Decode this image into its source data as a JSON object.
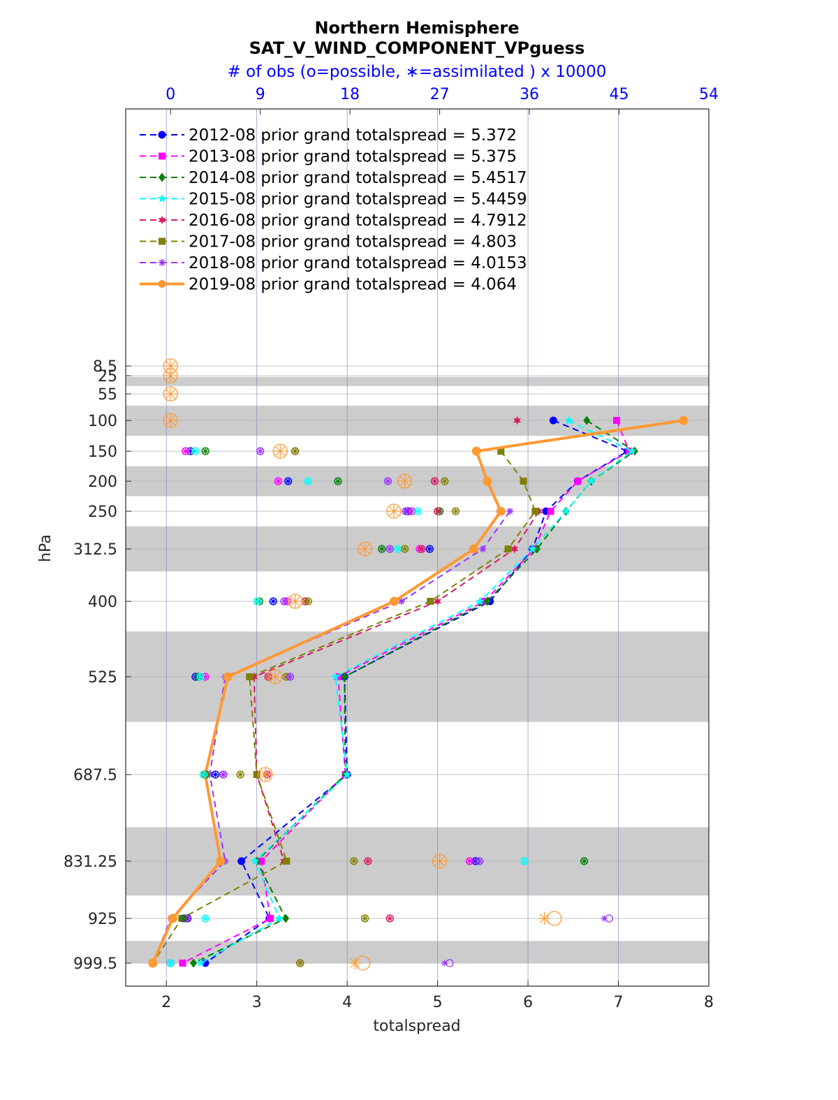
{
  "chart_data": {
    "type": "line",
    "title": "Northern Hemisphere",
    "subtitle": "SAT_V_WIND_COMPONENT_VPguess",
    "top_axis_label": "# of obs (o=possible, ∗=assimilated ) x 10000",
    "xlabel": "totalspread",
    "ylabel": "hPa",
    "xlim": [
      1.55,
      8
    ],
    "x_ticks": [
      "2",
      "3",
      "4",
      "5",
      "6",
      "7",
      "8"
    ],
    "top_xlim": [
      -4.5,
      54
    ],
    "top_ticks": [
      "0",
      "9",
      "18",
      "27",
      "36",
      "45",
      "54"
    ],
    "levels": [
      8.5,
      25,
      55,
      100,
      150,
      200,
      250,
      312.5,
      400,
      525,
      687.5,
      831.25,
      925,
      999.5
    ],
    "level_labels": [
      "8.5",
      "25",
      "55",
      "100",
      "150",
      "200",
      "250",
      "312.5",
      "400",
      "525",
      "687.5",
      "831.25",
      "925",
      "999.5"
    ],
    "grid": "on",
    "legend_position": "top-left",
    "series": [
      {
        "name": "2012-08 prior grand totalspread = 5.372",
        "color": "#0000ff",
        "marker": "circle",
        "style": "dashed",
        "values": [
          null,
          null,
          null,
          6.28,
          7.1,
          6.55,
          6.2,
          6.05,
          5.58,
          3.97,
          4.0,
          2.83,
          3.14,
          2.43
        ]
      },
      {
        "name": "2013-08 prior grand totalspread = 5.375",
        "color": "#ff00ff",
        "marker": "square",
        "style": "dashed",
        "values": [
          null,
          null,
          null,
          6.98,
          7.12,
          6.55,
          6.25,
          6.07,
          5.52,
          3.9,
          3.98,
          3.05,
          3.15,
          2.18
        ]
      },
      {
        "name": "2014-08 prior grand totalspread = 5.4517",
        "color": "#008000",
        "marker": "diamond",
        "style": "dashed",
        "values": [
          null,
          null,
          null,
          6.65,
          7.18,
          6.7,
          6.42,
          6.1,
          5.55,
          3.97,
          3.98,
          3.0,
          3.32,
          2.3
        ]
      },
      {
        "name": "2015-08 prior grand totalspread = 5.4459",
        "color": "#00ffff",
        "marker": "star",
        "style": "dashed",
        "values": [
          null,
          null,
          null,
          6.45,
          7.15,
          6.7,
          6.42,
          6.05,
          5.47,
          3.87,
          4.0,
          2.98,
          3.25,
          2.38
        ]
      },
      {
        "name": "2016-08 prior grand totalspread = 4.7912",
        "color": "#d81b60",
        "marker": "hexagram",
        "style": "dashed",
        "values": [
          null,
          null,
          null,
          5.88,
          null,
          null,
          6.12,
          5.85,
          5.0,
          2.97,
          3.0,
          3.3,
          null,
          null
        ]
      },
      {
        "name": "2017-08 prior grand totalspread = 4.803",
        "color": "#808000",
        "marker": "square",
        "style": "dashed",
        "values": [
          null,
          null,
          null,
          null,
          5.7,
          5.95,
          6.08,
          5.78,
          4.92,
          2.92,
          3.0,
          3.33,
          2.17,
          1.85
        ]
      },
      {
        "name": "2018-08 prior grand totalspread = 4.0153",
        "color": "#9933ff",
        "marker": "asterisk",
        "style": "dashed",
        "values": [
          null,
          null,
          null,
          null,
          null,
          null,
          5.8,
          5.5,
          4.6,
          2.65,
          2.48,
          2.65,
          2.05,
          1.85
        ]
      },
      {
        "name": "2019-08 prior grand totalspread = 4.064",
        "color": "#ff9933",
        "marker": "circle",
        "style": "solid",
        "values": [
          null,
          null,
          null,
          7.72,
          5.43,
          5.55,
          5.7,
          5.4,
          4.52,
          2.68,
          2.43,
          2.6,
          2.07,
          1.85
        ]
      }
    ],
    "obs_count_markers": [
      {
        "level": 8.5,
        "possible": 0,
        "assimilated": 0,
        "color": "#ff9933"
      },
      {
        "level": 25,
        "possible": 0,
        "assimilated": 0,
        "color": "#ff9933"
      },
      {
        "level": 55,
        "possible": 0,
        "assimilated": 0,
        "color": "#ff9933"
      },
      {
        "level": 100,
        "possible": 0,
        "assimilated": 0,
        "color": "#ff9933"
      },
      {
        "level": 150,
        "possible": 2.0,
        "assimilated": 2.0,
        "color": "#0000ff"
      },
      {
        "level": 150,
        "possible": 1.5,
        "assimilated": 1.5,
        "color": "#ff00ff"
      },
      {
        "level": 150,
        "possible": 3.5,
        "assimilated": 3.5,
        "color": "#008000"
      },
      {
        "level": 150,
        "possible": 2.5,
        "assimilated": 2.5,
        "color": "#00ffff"
      },
      {
        "level": 150,
        "possible": 12.5,
        "assimilated": 12.5,
        "color": "#d81b60"
      },
      {
        "level": 150,
        "possible": 12.5,
        "assimilated": 12.5,
        "color": "#808000"
      },
      {
        "level": 150,
        "possible": 9.0,
        "assimilated": 9.0,
        "color": "#9933ff"
      },
      {
        "level": 150,
        "possible": 11.0,
        "assimilated": 11.0,
        "color": "#ff9933"
      },
      {
        "level": 200,
        "possible": 11.8,
        "assimilated": 11.8,
        "color": "#0000ff"
      },
      {
        "level": 200,
        "possible": 10.8,
        "assimilated": 10.8,
        "color": "#ff00ff"
      },
      {
        "level": 200,
        "possible": 16.8,
        "assimilated": 16.8,
        "color": "#008000"
      },
      {
        "level": 200,
        "possible": 13.8,
        "assimilated": 13.8,
        "color": "#00ffff"
      },
      {
        "level": 200,
        "possible": 26.5,
        "assimilated": 26.5,
        "color": "#d81b60"
      },
      {
        "level": 200,
        "possible": 27.5,
        "assimilated": 27.5,
        "color": "#808000"
      },
      {
        "level": 200,
        "possible": 21.8,
        "assimilated": 21.8,
        "color": "#9933ff"
      },
      {
        "level": 200,
        "possible": 23.5,
        "assimilated": 23.5,
        "color": "#ff9933"
      },
      {
        "level": 250,
        "possible": 23.8,
        "assimilated": 23.8,
        "color": "#0000ff"
      },
      {
        "level": 250,
        "possible": 24.2,
        "assimilated": 24.2,
        "color": "#ff00ff"
      },
      {
        "level": 250,
        "possible": 27.0,
        "assimilated": 27.0,
        "color": "#008000"
      },
      {
        "level": 250,
        "possible": 24.8,
        "assimilated": 24.8,
        "color": "#00ffff"
      },
      {
        "level": 250,
        "possible": 26.8,
        "assimilated": 26.8,
        "color": "#d81b60"
      },
      {
        "level": 250,
        "possible": 28.6,
        "assimilated": 28.6,
        "color": "#808000"
      },
      {
        "level": 250,
        "possible": 23.6,
        "assimilated": 23.6,
        "color": "#9933ff"
      },
      {
        "level": 250,
        "possible": 22.4,
        "assimilated": 22.4,
        "color": "#ff9933"
      },
      {
        "level": 312.5,
        "possible": 26.0,
        "assimilated": 26.0,
        "color": "#0000ff"
      },
      {
        "level": 312.5,
        "possible": 25.0,
        "assimilated": 25.0,
        "color": "#ff00ff"
      },
      {
        "level": 312.5,
        "possible": 21.2,
        "assimilated": 21.2,
        "color": "#008000"
      },
      {
        "level": 312.5,
        "possible": 22.8,
        "assimilated": 22.8,
        "color": "#00ffff"
      },
      {
        "level": 312.5,
        "possible": 25.2,
        "assimilated": 25.2,
        "color": "#d81b60"
      },
      {
        "level": 312.5,
        "possible": 23.5,
        "assimilated": 23.5,
        "color": "#808000"
      },
      {
        "level": 312.5,
        "possible": 22.0,
        "assimilated": 22.0,
        "color": "#9933ff"
      },
      {
        "level": 312.5,
        "possible": 19.5,
        "assimilated": 19.5,
        "color": "#ff9933"
      },
      {
        "level": 400,
        "possible": 10.3,
        "assimilated": 10.3,
        "color": "#0000ff"
      },
      {
        "level": 400,
        "possible": 11.7,
        "assimilated": 11.7,
        "color": "#ff00ff"
      },
      {
        "level": 400,
        "possible": 8.9,
        "assimilated": 8.9,
        "color": "#008000"
      },
      {
        "level": 400,
        "possible": 8.7,
        "assimilated": 8.7,
        "color": "#00ffff"
      },
      {
        "level": 400,
        "possible": 13.5,
        "assimilated": 13.5,
        "color": "#d81b60"
      },
      {
        "level": 400,
        "possible": 13.8,
        "assimilated": 13.8,
        "color": "#808000"
      },
      {
        "level": 400,
        "possible": 11.4,
        "assimilated": 11.4,
        "color": "#9933ff"
      },
      {
        "level": 400,
        "possible": 12.5,
        "assimilated": 12.5,
        "color": "#ff9933"
      },
      {
        "level": 525,
        "possible": 2.5,
        "assimilated": 2.5,
        "color": "#0000ff"
      },
      {
        "level": 525,
        "possible": 3.5,
        "assimilated": 3.5,
        "color": "#ff00ff"
      },
      {
        "level": 525,
        "possible": 2.8,
        "assimilated": 2.8,
        "color": "#008000"
      },
      {
        "level": 525,
        "possible": 3.0,
        "assimilated": 3.0,
        "color": "#00ffff"
      },
      {
        "level": 525,
        "possible": 9.8,
        "assimilated": 9.8,
        "color": "#d81b60"
      },
      {
        "level": 525,
        "possible": 11.6,
        "assimilated": 11.6,
        "color": "#808000"
      },
      {
        "level": 525,
        "possible": 12.0,
        "assimilated": 12.0,
        "color": "#9933ff"
      },
      {
        "level": 525,
        "possible": 10.5,
        "assimilated": 10.5,
        "color": "#ff9933"
      },
      {
        "level": 687.5,
        "possible": 4.5,
        "assimilated": 4.5,
        "color": "#0000ff"
      },
      {
        "level": 687.5,
        "possible": 5.3,
        "assimilated": 5.3,
        "color": "#ff00ff"
      },
      {
        "level": 687.5,
        "possible": 3.5,
        "assimilated": 3.5,
        "color": "#008000"
      },
      {
        "level": 687.5,
        "possible": 3.3,
        "assimilated": 3.3,
        "color": "#00ffff"
      },
      {
        "level": 687.5,
        "possible": 9.7,
        "assimilated": 9.7,
        "color": "#d81b60"
      },
      {
        "level": 687.5,
        "possible": 7.0,
        "assimilated": 7.0,
        "color": "#808000"
      },
      {
        "level": 687.5,
        "possible": 5.3,
        "assimilated": 5.3,
        "color": "#9933ff"
      },
      {
        "level": 687.5,
        "possible": 9.5,
        "assimilated": 9.5,
        "color": "#ff9933"
      },
      {
        "level": 831.25,
        "possible": 30.6,
        "assimilated": 30.6,
        "color": "#0000ff"
      },
      {
        "level": 831.25,
        "possible": 30.0,
        "assimilated": 30.0,
        "color": "#ff00ff"
      },
      {
        "level": 831.25,
        "possible": 41.5,
        "assimilated": 41.5,
        "color": "#008000"
      },
      {
        "level": 831.25,
        "possible": 35.5,
        "assimilated": 35.5,
        "color": "#00ffff"
      },
      {
        "level": 831.25,
        "possible": 19.8,
        "assimilated": 19.8,
        "color": "#d81b60"
      },
      {
        "level": 831.25,
        "possible": 18.4,
        "assimilated": 18.4,
        "color": "#808000"
      },
      {
        "level": 831.25,
        "possible": 31.0,
        "assimilated": 31.0,
        "color": "#9933ff"
      },
      {
        "level": 831.25,
        "possible": 27.0,
        "assimilated": 27.0,
        "color": "#ff9933"
      },
      {
        "level": 925,
        "possible": 1.7,
        "assimilated": 1.7,
        "color": "#0000ff"
      },
      {
        "level": 925,
        "possible": 1.5,
        "assimilated": 1.5,
        "color": "#ff00ff"
      },
      {
        "level": 925,
        "possible": 1.3,
        "assimilated": 1.3,
        "color": "#008000"
      },
      {
        "level": 925,
        "possible": 3.5,
        "assimilated": 3.5,
        "color": "#00ffff"
      },
      {
        "level": 925,
        "possible": 22.0,
        "assimilated": 22.0,
        "color": "#d81b60"
      },
      {
        "level": 925,
        "possible": 19.5,
        "assimilated": 19.5,
        "color": "#808000"
      },
      {
        "level": 925,
        "possible": 44.0,
        "assimilated": 43.5,
        "color": "#9933ff"
      },
      {
        "level": 925,
        "possible": 38.5,
        "assimilated": 37.5,
        "color": "#ff9933"
      },
      {
        "level": 999.5,
        "possible": 0,
        "assimilated": 0,
        "color": "#0000ff"
      },
      {
        "level": 999.5,
        "possible": 0,
        "assimilated": 0,
        "color": "#00ffff"
      },
      {
        "level": 999.5,
        "possible": 13.0,
        "assimilated": 13.0,
        "color": "#d81b60"
      },
      {
        "level": 999.5,
        "possible": 13.0,
        "assimilated": 13.0,
        "color": "#808000"
      },
      {
        "level": 999.5,
        "possible": 28.0,
        "assimilated": 27.5,
        "color": "#9933ff"
      },
      {
        "level": 999.5,
        "possible": 19.3,
        "assimilated": 18.5,
        "color": "#ff9933"
      }
    ]
  }
}
